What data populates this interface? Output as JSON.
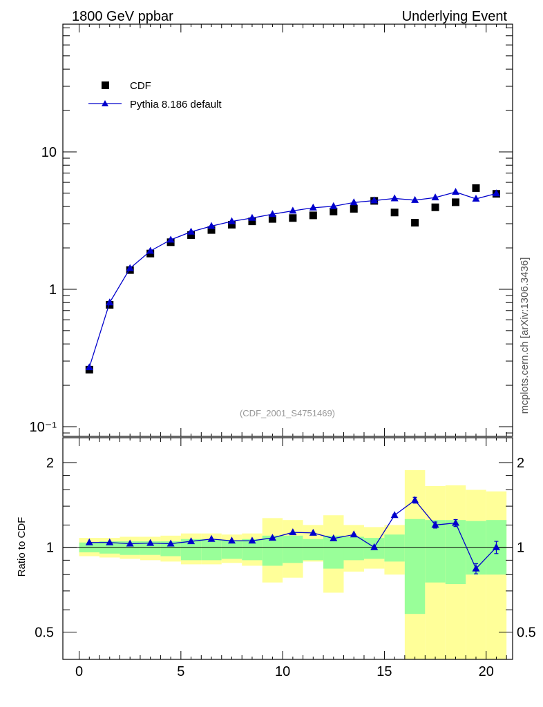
{
  "header": {
    "left": "1800 GeV ppbar",
    "right": "Underlying Event"
  },
  "side_label": "mcplots.cern.ch [arXiv:1306.3436]",
  "analysis_tag": "(CDF_2001_S4751469)",
  "colors": {
    "data": "#000000",
    "mc": "#0000cc",
    "band_inner": "#99ff99",
    "band_outer": "#ffff99",
    "analysis_tag": "#999999"
  },
  "chart_data": [
    {
      "type": "scatter",
      "yscale": "log",
      "xlim": [
        -0.8,
        21.3
      ],
      "ylim": [
        0.085,
        85
      ],
      "xlabel": "",
      "ylabel": "",
      "y_tick_labels": [
        "10⁻¹",
        "1",
        "10"
      ],
      "legend_position": "top-left",
      "series": [
        {
          "name": "CDF",
          "marker": "square",
          "x": [
            0.5,
            1.5,
            2.5,
            3.5,
            4.5,
            5.5,
            6.5,
            7.5,
            8.5,
            9.5,
            10.5,
            11.5,
            12.5,
            13.5,
            14.5,
            15.5,
            16.5,
            17.5,
            18.5,
            19.5,
            20.5
          ],
          "y": [
            0.26,
            0.77,
            1.38,
            1.82,
            2.2,
            2.48,
            2.7,
            2.95,
            3.12,
            3.25,
            3.3,
            3.45,
            3.68,
            3.85,
            4.4,
            3.62,
            3.05,
            3.95,
            4.3,
            5.45,
            4.95
          ]
        },
        {
          "name": "Pythia 8.186 default",
          "marker": "triangle",
          "line": true,
          "x": [
            0.5,
            1.5,
            2.5,
            3.5,
            4.5,
            5.5,
            6.5,
            7.5,
            8.5,
            9.5,
            10.5,
            11.5,
            12.5,
            13.5,
            14.5,
            15.5,
            16.5,
            17.5,
            18.5,
            19.5,
            20.5
          ],
          "y": [
            0.27,
            0.8,
            1.42,
            1.9,
            2.29,
            2.62,
            2.88,
            3.12,
            3.3,
            3.52,
            3.72,
            3.92,
            4.02,
            4.28,
            4.42,
            4.58,
            4.45,
            4.65,
            5.1,
            4.55,
            4.98
          ]
        }
      ]
    },
    {
      "type": "line",
      "yscale": "log",
      "xlim": [
        -0.8,
        21.3
      ],
      "ylim": [
        0.4,
        2.45
      ],
      "xlabel": "",
      "ylabel": "Ratio to CDF",
      "x_ticks": [
        0,
        5,
        10,
        15,
        20
      ],
      "y_ticks": [
        0.5,
        1,
        2
      ],
      "reference_line": 1,
      "bands": {
        "x_edges": [
          0,
          1,
          2,
          3,
          4,
          5,
          6,
          7,
          8,
          9,
          10,
          11,
          12,
          13,
          14,
          15,
          16,
          17,
          18,
          19,
          20,
          21
        ],
        "inner_lo": [
          0.96,
          0.95,
          0.94,
          0.94,
          0.93,
          0.9,
          0.9,
          0.91,
          0.9,
          0.86,
          0.88,
          0.9,
          0.84,
          0.9,
          0.91,
          0.89,
          0.58,
          0.75,
          0.74,
          0.8,
          0.8
        ],
        "inner_hi": [
          1.04,
          1.05,
          1.05,
          1.05,
          1.05,
          1.07,
          1.07,
          1.06,
          1.07,
          1.1,
          1.1,
          1.07,
          1.1,
          1.09,
          1.08,
          1.11,
          1.26,
          1.25,
          1.25,
          1.24,
          1.25
        ],
        "outer_lo": [
          0.93,
          0.92,
          0.91,
          0.9,
          0.89,
          0.87,
          0.87,
          0.88,
          0.86,
          0.75,
          0.78,
          0.89,
          0.69,
          0.82,
          0.84,
          0.8,
          0.35,
          0.4,
          0.38,
          0.35,
          0.35
        ],
        "outer_hi": [
          1.08,
          1.08,
          1.09,
          1.09,
          1.1,
          1.12,
          1.12,
          1.11,
          1.12,
          1.27,
          1.25,
          1.2,
          1.3,
          1.2,
          1.18,
          1.2,
          1.88,
          1.65,
          1.66,
          1.6,
          1.58
        ]
      },
      "series": [
        {
          "name": "Pythia 8.186 default",
          "x": [
            0.5,
            1.5,
            2.5,
            3.5,
            4.5,
            5.5,
            6.5,
            7.5,
            8.5,
            9.5,
            10.5,
            11.5,
            12.5,
            13.5,
            14.5,
            15.5,
            16.5,
            17.5,
            18.5,
            19.5,
            20.5
          ],
          "y": [
            1.04,
            1.04,
            1.03,
            1.035,
            1.03,
            1.05,
            1.07,
            1.055,
            1.055,
            1.08,
            1.13,
            1.125,
            1.075,
            1.11,
            1.0,
            1.3,
            1.47,
            1.2,
            1.22,
            0.84,
            1.0
          ],
          "err": [
            0.005,
            0.005,
            0.005,
            0.005,
            0.005,
            0.005,
            0.005,
            0.005,
            0.005,
            0.005,
            0.005,
            0.005,
            0.005,
            0.005,
            0.005,
            0.01,
            0.035,
            0.03,
            0.035,
            0.035,
            0.05
          ]
        }
      ]
    }
  ]
}
